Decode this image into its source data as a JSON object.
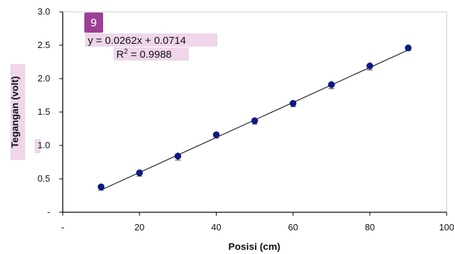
{
  "badge": {
    "label": "9",
    "color": "#9b3f97"
  },
  "colors": {
    "marker": "#0a1a8c",
    "line": "#222222",
    "errorbar": "#444444",
    "highlight": "#efd6ea"
  },
  "chart_data": {
    "type": "scatter",
    "xlabel": "Posisi (cm)",
    "ylabel": "Tegangan (volt)",
    "xlim": [
      0,
      100
    ],
    "ylim": [
      0,
      3.0
    ],
    "x_ticks": [
      0,
      20,
      40,
      60,
      80,
      100
    ],
    "x_tick_labels": [
      "-",
      "20",
      "40",
      "60",
      "80",
      "100"
    ],
    "y_ticks": [
      0,
      0.5,
      1.0,
      1.5,
      2.0,
      2.5,
      3.0
    ],
    "y_tick_labels": [
      "-",
      "0.5",
      "1.0",
      "1.5",
      "2.0",
      "2.5",
      "3.0"
    ],
    "series": [
      {
        "x": [
          10,
          20,
          30,
          40,
          50,
          60,
          70,
          80,
          90
        ],
        "y": [
          0.38,
          0.59,
          0.84,
          1.16,
          1.37,
          1.63,
          1.91,
          2.19,
          2.46
        ],
        "yerr": [
          0.05,
          0.05,
          0.06,
          0.05,
          0.05,
          0.05,
          0.06,
          0.06,
          0.04
        ]
      }
    ],
    "trendline": {
      "type": "linear",
      "slope": 0.0262,
      "intercept": 0.0714,
      "x_range": [
        10,
        90
      ],
      "equation": "y = 0.0262x + 0.0714",
      "r2_label": "R",
      "r2_sup": "2",
      "r2_value": " = 0.9988"
    },
    "grid": false
  }
}
